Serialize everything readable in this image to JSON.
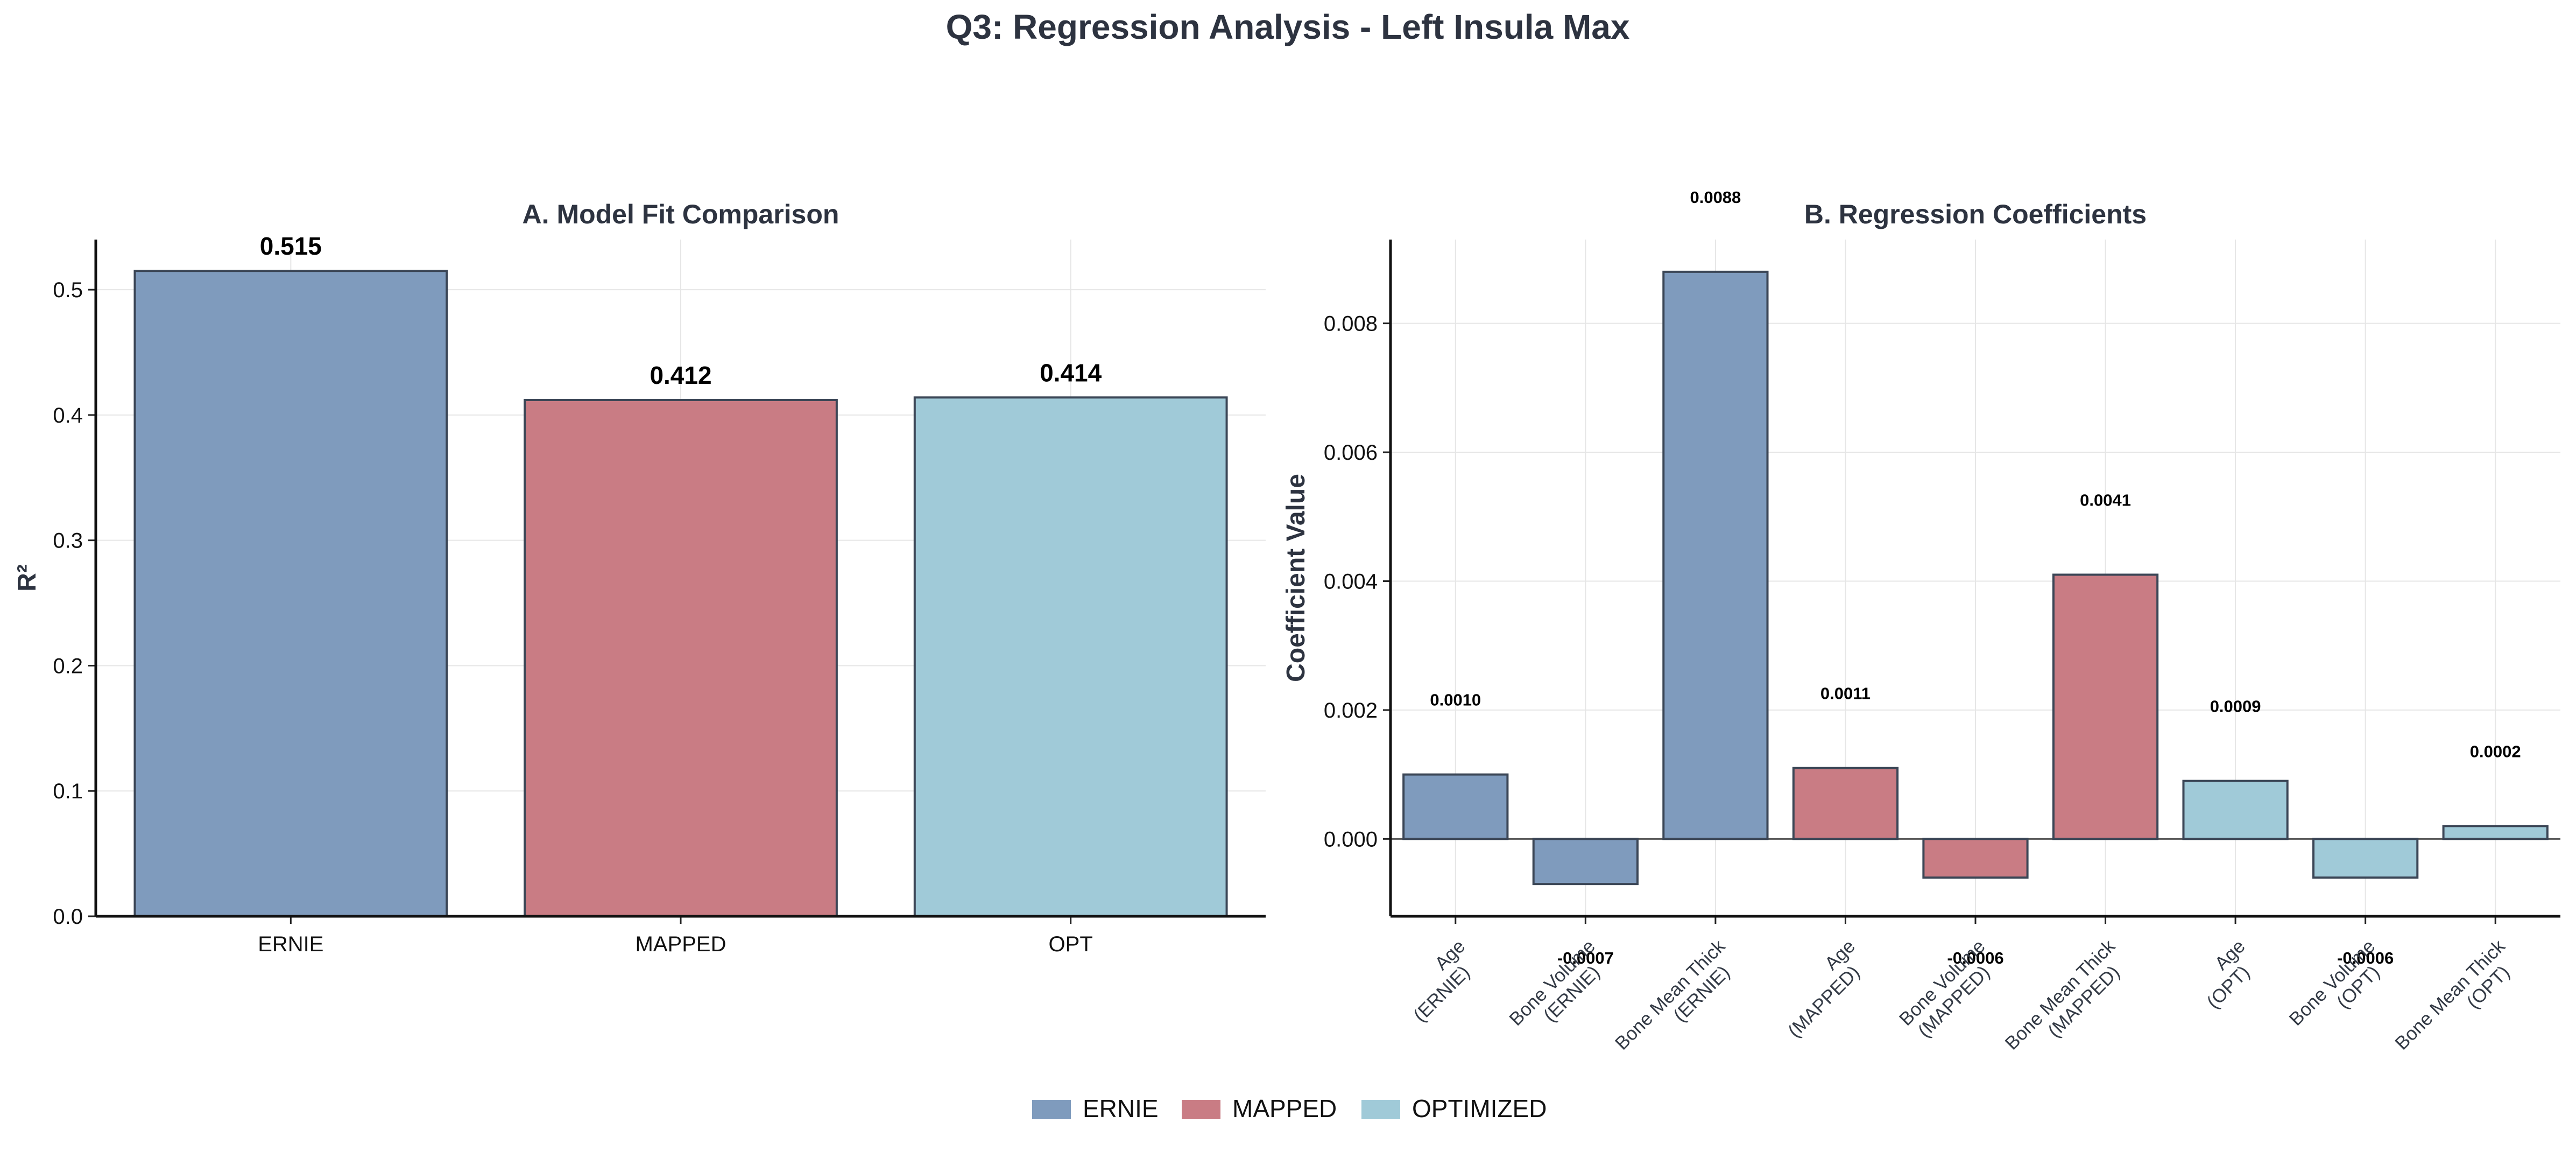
{
  "figure": {
    "title": "Q3: Regression Analysis - Left Insula Max"
  },
  "colors": {
    "ernie": "#7f9bbd",
    "mapped": "#c97c84",
    "optimized": "#a0cad8",
    "edge": "#3b4656",
    "grid": "#e6e6e6",
    "text": "#2d3340"
  },
  "legend": {
    "items": [
      {
        "label": "ERNIE",
        "color": "#7f9bbd"
      },
      {
        "label": "MAPPED",
        "color": "#c97c84"
      },
      {
        "label": "OPTIMIZED",
        "color": "#a0cad8"
      }
    ]
  },
  "chart_data": [
    {
      "type": "bar",
      "title": "A. Model Fit Comparison",
      "xlabel": "",
      "ylabel": "R²",
      "categories": [
        "ERNIE",
        "MAPPED",
        "OPT"
      ],
      "values": [
        0.515,
        0.412,
        0.414
      ],
      "value_labels": [
        "0.515",
        "0.412",
        "0.414"
      ],
      "bar_colors": [
        "#7f9bbd",
        "#c97c84",
        "#a0cad8"
      ],
      "ylim": [
        0,
        0.54
      ],
      "yticks": [
        0.0,
        0.1,
        0.2,
        0.3,
        0.4,
        0.5
      ],
      "ytick_labels": [
        "0.0",
        "0.1",
        "0.2",
        "0.3",
        "0.4",
        "0.5"
      ],
      "grid": true
    },
    {
      "type": "bar",
      "title": "B. Regression Coefficients",
      "xlabel": "",
      "ylabel": "Coefficient Value",
      "categories": [
        [
          "Age",
          "(ERNIE)"
        ],
        [
          "Bone Volume",
          "(ERNIE)"
        ],
        [
          "Bone Mean Thick",
          "(ERNIE)"
        ],
        [
          "Age",
          "(MAPPED)"
        ],
        [
          "Bone Volume",
          "(MAPPED)"
        ],
        [
          "Bone Mean Thick",
          "(MAPPED)"
        ],
        [
          "Age",
          "(OPT)"
        ],
        [
          "Bone Volume",
          "(OPT)"
        ],
        [
          "Bone Mean Thick",
          "(OPT)"
        ]
      ],
      "values": [
        0.001,
        -0.0007,
        0.0088,
        0.0011,
        -0.0006,
        0.0041,
        0.0009,
        -0.0006,
        0.0002
      ],
      "value_labels": [
        "0.0010",
        "-0.0007",
        "0.0088",
        "0.0011",
        "-0.0006",
        "0.0041",
        "0.0009",
        "-0.0006",
        "0.0002"
      ],
      "bar_colors": [
        "#7f9bbd",
        "#7f9bbd",
        "#7f9bbd",
        "#c97c84",
        "#c97c84",
        "#c97c84",
        "#a0cad8",
        "#a0cad8",
        "#a0cad8"
      ],
      "ylim": [
        -0.0012,
        0.0093
      ],
      "yticks": [
        0.0,
        0.002,
        0.004,
        0.006,
        0.008
      ],
      "ytick_labels": [
        "0.000",
        "0.002",
        "0.004",
        "0.006",
        "0.008"
      ],
      "zero_line": true,
      "grid": true
    }
  ]
}
